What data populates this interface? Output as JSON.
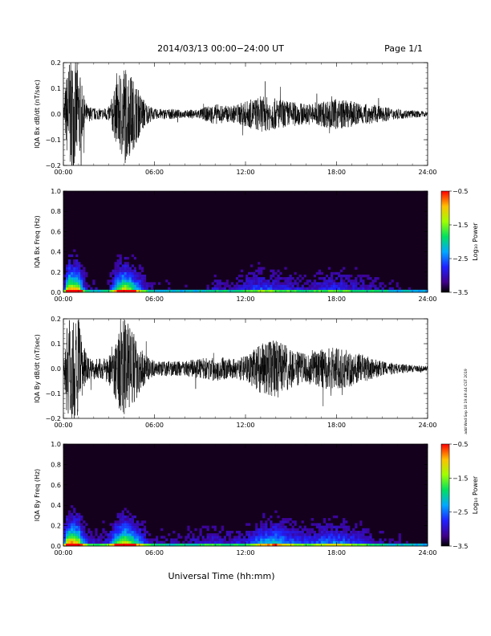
{
  "header": {
    "title": "2014/03/13  00:00−24:00 UT",
    "page": "Page 1/1"
  },
  "footer": {
    "xlabel": "Universal Time (hh:mm)"
  },
  "side_stamp": "add Wed Sep 18 19:49:44 CST 2019",
  "colors": {
    "background": "#ffffff",
    "trace": "#000000",
    "spectrogram_bg": "#14001c"
  },
  "chart_data": [
    {
      "type": "line",
      "ylabel": "IQA Bx dB/dt (nT/sec)",
      "x_range": [
        "00:00",
        "24:00"
      ],
      "x_ticks": [
        "00:00",
        "06:00",
        "12:00",
        "18:00",
        "24:00"
      ],
      "ylim": [
        -0.2,
        0.2
      ],
      "y_ticks": [
        "−0.2",
        "−0.1",
        "0.0",
        "0.1",
        "0.2"
      ],
      "y_tick_values": [
        -0.2,
        -0.1,
        0.0,
        0.1,
        0.2
      ],
      "envelope_hours": [
        0,
        0.2,
        0.4,
        0.6,
        1.0,
        1.3,
        1.6,
        2.0,
        2.5,
        3.0,
        3.5,
        4.0,
        4.5,
        5.0,
        5.5,
        6.0,
        7.0,
        8.0,
        9.0,
        10.0,
        11.0,
        12.0,
        13.0,
        14.0,
        15.0,
        16.0,
        17.0,
        18.0,
        19.0,
        20.0,
        21.0,
        22.0,
        23.0,
        24.0
      ],
      "envelope_amplitude": [
        0.02,
        0.15,
        0.22,
        0.22,
        0.2,
        0.08,
        0.03,
        0.025,
        0.02,
        0.03,
        0.12,
        0.2,
        0.15,
        0.09,
        0.04,
        0.02,
        0.02,
        0.015,
        0.02,
        0.04,
        0.03,
        0.05,
        0.07,
        0.06,
        0.05,
        0.04,
        0.05,
        0.06,
        0.05,
        0.04,
        0.03,
        0.02,
        0.015,
        0.01
      ]
    },
    {
      "type": "heatmap",
      "ylabel": "IQA Bx Freq (Hz)",
      "x_range": [
        "00:00",
        "24:00"
      ],
      "x_ticks": [
        "00:00",
        "06:00",
        "12:00",
        "18:00",
        "24:00"
      ],
      "ylim": [
        0.0,
        1.0
      ],
      "y_ticks": [
        "0.0",
        "0.2",
        "0.4",
        "0.6",
        "0.8",
        "1.0"
      ],
      "y_tick_values": [
        0.0,
        0.2,
        0.4,
        0.6,
        0.8,
        1.0
      ],
      "colorbar": {
        "label": "Log₁₀ Power",
        "range": [
          -3.5,
          -0.5
        ],
        "ticks": [
          "−0.5",
          "−1.5",
          "−2.5",
          "−3.5"
        ],
        "tick_values": [
          -0.5,
          -1.5,
          -2.5,
          -3.5
        ]
      }
    },
    {
      "type": "line",
      "ylabel": "IQA By dB/dt (nT/sec)",
      "x_range": [
        "00:00",
        "24:00"
      ],
      "x_ticks": [
        "00:00",
        "06:00",
        "12:00",
        "18:00",
        "24:00"
      ],
      "ylim": [
        -0.2,
        0.2
      ],
      "y_ticks": [
        "−0.2",
        "−0.1",
        "0.0",
        "0.1",
        "0.2"
      ],
      "y_tick_values": [
        -0.2,
        -0.1,
        0.0,
        0.1,
        0.2
      ],
      "envelope_hours": [
        0,
        0.2,
        0.4,
        0.6,
        1.0,
        1.3,
        1.6,
        2.0,
        2.5,
        3.0,
        3.5,
        4.0,
        4.5,
        5.0,
        5.5,
        6.0,
        7.0,
        8.0,
        9.0,
        10.0,
        11.0,
        12.0,
        13.0,
        14.0,
        15.0,
        16.0,
        17.0,
        18.0,
        19.0,
        20.0,
        21.0,
        22.0,
        23.0,
        24.0
      ],
      "envelope_amplitude": [
        0.03,
        0.18,
        0.22,
        0.22,
        0.2,
        0.1,
        0.05,
        0.04,
        0.04,
        0.06,
        0.14,
        0.2,
        0.16,
        0.1,
        0.05,
        0.03,
        0.03,
        0.03,
        0.04,
        0.05,
        0.04,
        0.05,
        0.1,
        0.12,
        0.08,
        0.06,
        0.08,
        0.09,
        0.07,
        0.05,
        0.03,
        0.02,
        0.015,
        0.01
      ]
    },
    {
      "type": "heatmap",
      "ylabel": "IQA By Freq (Hz)",
      "x_range": [
        "00:00",
        "24:00"
      ],
      "x_ticks": [
        "00:00",
        "06:00",
        "12:00",
        "18:00",
        "24:00"
      ],
      "ylim": [
        0.0,
        1.0
      ],
      "y_ticks": [
        "0.0",
        "0.2",
        "0.4",
        "0.6",
        "0.8",
        "1.0"
      ],
      "y_tick_values": [
        0.0,
        0.2,
        0.4,
        0.6,
        0.8,
        1.0
      ],
      "colorbar": {
        "label": "Log₁₀ Power",
        "range": [
          -3.5,
          -0.5
        ],
        "ticks": [
          "−0.5",
          "−1.5",
          "−2.5",
          "−3.5"
        ],
        "tick_values": [
          -0.5,
          -1.5,
          -2.5,
          -3.5
        ]
      }
    }
  ]
}
